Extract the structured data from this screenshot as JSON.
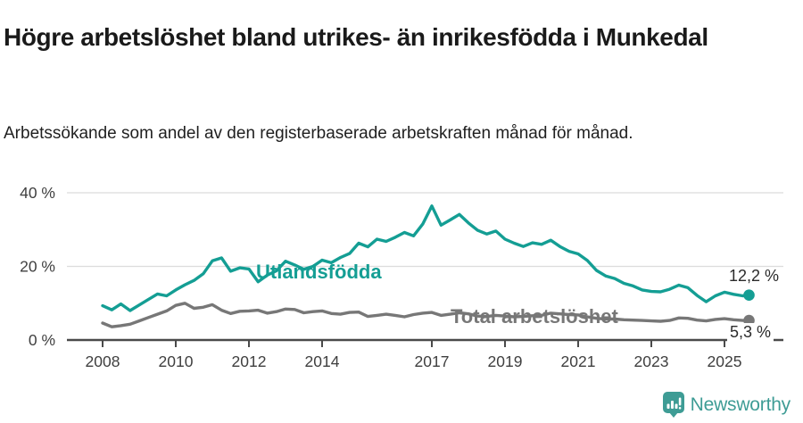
{
  "header": {
    "title": "Högre arbetslöshet bland utrikes- än inrikesfödda i Munkedal",
    "subtitle": "Arbetssökande som andel av den registerbaserade arbetskraften månad för månad."
  },
  "colors": {
    "accent_teal": "#149E94",
    "series_gray": "#777777",
    "text_dark": "#1a1a1a",
    "axis": "#4a4a4a",
    "grid": "#dcdcdc",
    "logo_teal": "#3E9C95"
  },
  "footer": {
    "brand": "Newsworthy",
    "logo_icon": "bar-chart-pin-icon"
  },
  "chart_data": {
    "type": "line",
    "title": "Högre arbetslöshet bland utrikes- än inrikesfödda i Munkedal",
    "subtitle": "Arbetssökande som andel av den registerbaserade arbetskraften månad för månad.",
    "xlabel": "",
    "ylabel": "",
    "xlim": [
      2008,
      2025.83
    ],
    "ylim": [
      0,
      40
    ],
    "grid": "horizontal-light",
    "legend": "inline-labels",
    "y_ticks": [
      {
        "value": 0,
        "label": "0 %"
      },
      {
        "value": 20,
        "label": "20 %"
      },
      {
        "value": 40,
        "label": "40 %"
      }
    ],
    "x_ticks": [
      {
        "year": 2008,
        "label": "2008"
      },
      {
        "year": 2010,
        "label": "2010"
      },
      {
        "year": 2012,
        "label": "2012"
      },
      {
        "year": 2014,
        "label": "2014"
      },
      {
        "year": 2017,
        "label": "2017"
      },
      {
        "year": 2019,
        "label": "2019"
      },
      {
        "year": 2021,
        "label": "2021"
      },
      {
        "year": 2023,
        "label": "2023"
      },
      {
        "year": 2025,
        "label": "2025"
      }
    ],
    "x": [
      2008,
      2008.25,
      2008.5,
      2008.75,
      2009,
      2009.25,
      2009.5,
      2009.75,
      2010,
      2010.25,
      2010.5,
      2010.75,
      2011,
      2011.25,
      2011.5,
      2011.75,
      2012,
      2012.25,
      2012.5,
      2012.75,
      2013,
      2013.25,
      2013.5,
      2013.75,
      2014,
      2014.25,
      2014.5,
      2014.75,
      2015,
      2015.25,
      2015.5,
      2015.75,
      2016,
      2016.25,
      2016.5,
      2016.75,
      2017,
      2017.25,
      2017.5,
      2017.75,
      2018,
      2018.25,
      2018.5,
      2018.75,
      2019,
      2019.25,
      2019.5,
      2019.75,
      2020,
      2020.25,
      2020.5,
      2020.75,
      2021,
      2021.25,
      2021.5,
      2021.75,
      2022,
      2022.25,
      2022.5,
      2022.75,
      2023,
      2023.25,
      2023.5,
      2023.75,
      2024,
      2024.25,
      2024.5,
      2024.75,
      2025,
      2025.25,
      2025.5,
      2025.67
    ],
    "series": [
      {
        "id": "utlandsfodda",
        "name": "Utlandsfödda",
        "label": "Utlandsfödda",
        "color": "#149E94",
        "end_value": 12.2,
        "end_label": "12,2 %",
        "values": [
          9.3,
          8.2,
          9.8,
          8.0,
          9.5,
          11.0,
          12.5,
          12.0,
          13.6,
          15.0,
          16.2,
          18.0,
          21.5,
          22.3,
          18.7,
          19.6,
          19.3,
          15.8,
          17.6,
          18.8,
          21.4,
          20.4,
          19.2,
          20.0,
          21.7,
          21.0,
          22.4,
          23.5,
          26.3,
          25.3,
          27.4,
          26.8,
          27.9,
          29.2,
          28.3,
          31.5,
          36.4,
          31.2,
          32.6,
          34.1,
          31.8,
          29.8,
          28.8,
          29.6,
          27.4,
          26.3,
          25.4,
          26.4,
          26.0,
          27.1,
          25.4,
          24.1,
          23.4,
          21.6,
          18.9,
          17.4,
          16.7,
          15.4,
          14.7,
          13.6,
          13.2,
          13.1,
          13.8,
          14.9,
          14.2,
          12.1,
          10.4,
          12.0,
          13.0,
          12.4,
          12.0,
          12.2
        ]
      },
      {
        "id": "total",
        "name": "Total arbetslöshet",
        "label": "Total arbetslöshet",
        "color": "#777777",
        "end_value": 5.3,
        "end_label": "5,3 %",
        "values": [
          4.6,
          3.6,
          3.9,
          4.3,
          5.2,
          6.1,
          7.0,
          7.9,
          9.4,
          10.0,
          8.6,
          8.9,
          9.6,
          8.1,
          7.2,
          7.8,
          7.9,
          8.1,
          7.3,
          7.7,
          8.4,
          8.3,
          7.4,
          7.7,
          7.9,
          7.2,
          7.0,
          7.5,
          7.6,
          6.4,
          6.7,
          7.0,
          6.7,
          6.3,
          6.9,
          7.3,
          7.5,
          6.7,
          7.0,
          7.4,
          7.1,
          6.5,
          6.4,
          6.7,
          6.5,
          6.3,
          6.4,
          6.6,
          6.7,
          7.3,
          7.1,
          6.9,
          6.8,
          6.3,
          5.9,
          5.7,
          5.7,
          5.5,
          5.4,
          5.3,
          5.2,
          5.1,
          5.3,
          6.0,
          5.9,
          5.4,
          5.2,
          5.6,
          5.8,
          5.5,
          5.3,
          5.3
        ]
      }
    ]
  }
}
